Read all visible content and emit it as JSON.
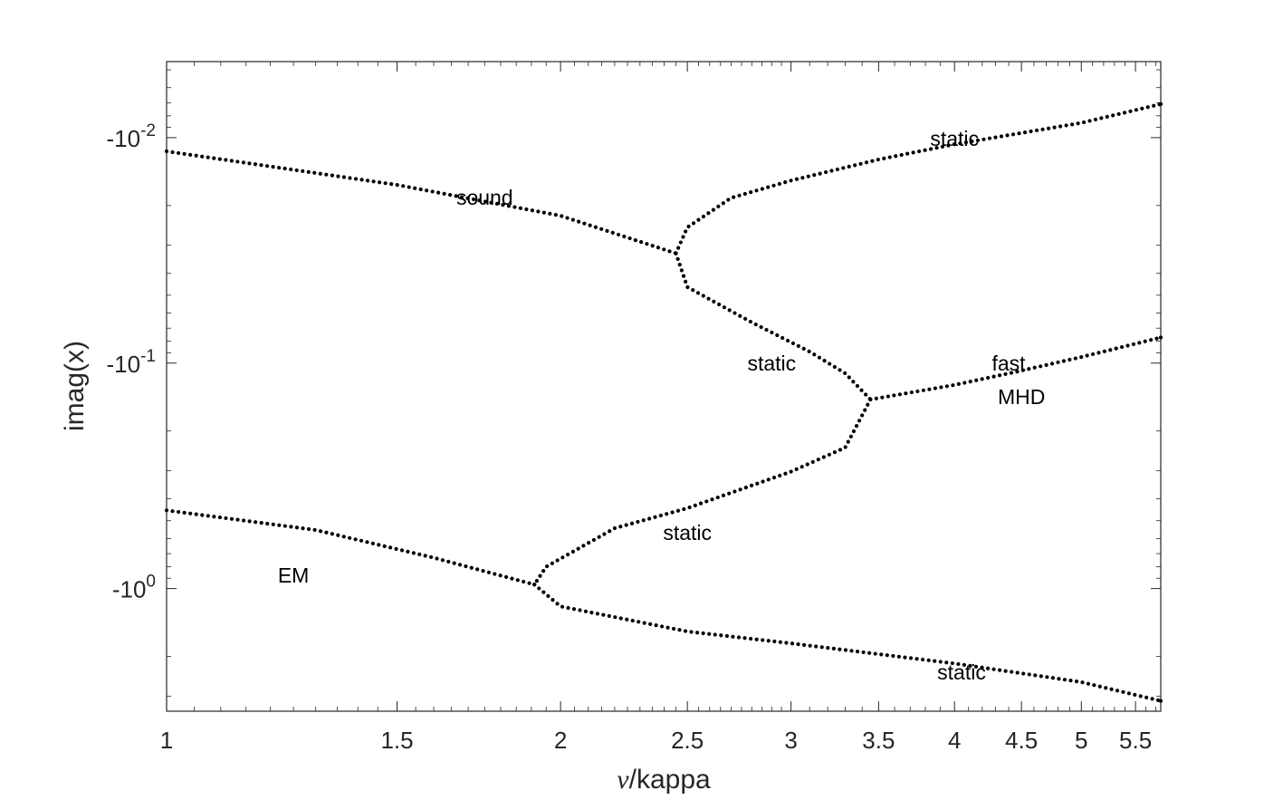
{
  "chart_data": {
    "type": "scatter",
    "title": "",
    "xlabel_symbol": "ν",
    "xlabel_text": "/kappa",
    "ylabel": "imag(x)",
    "x_scale": "log",
    "y_scale": "symlog",
    "xlim": [
      1,
      5.75
    ],
    "ylim": [
      -3.5,
      -0.0046
    ],
    "grid": false,
    "legend": "none",
    "x_ticks": [
      {
        "value": 1,
        "label": "1"
      },
      {
        "value": 1.5,
        "label": "1.5"
      },
      {
        "value": 2,
        "label": "2"
      },
      {
        "value": 2.5,
        "label": "2.5"
      },
      {
        "value": 3,
        "label": "3"
      },
      {
        "value": 3.5,
        "label": "3.5"
      },
      {
        "value": 4,
        "label": "4"
      },
      {
        "value": 4.5,
        "label": "4.5"
      },
      {
        "value": 5,
        "label": "5"
      },
      {
        "value": 5.5,
        "label": "5.5"
      }
    ],
    "y_ticks": [
      {
        "value": -0.01,
        "base": "-10",
        "exp": "-2"
      },
      {
        "value": -0.1,
        "base": "-10",
        "exp": "-1"
      },
      {
        "value": -1,
        "base": "-10",
        "exp": "0"
      }
    ],
    "series": [
      {
        "points": [
          [
            1,
            -0.0115
          ],
          [
            1.5,
            -0.0162
          ],
          [
            2.0,
            -0.0222
          ],
          [
            2.45,
            -0.0326
          ]
        ]
      },
      {
        "points": [
          [
            2.45,
            -0.0326
          ],
          [
            2.5,
            -0.025
          ],
          [
            2.7,
            -0.0185
          ],
          [
            3.0,
            -0.0155
          ],
          [
            3.5,
            -0.0125
          ],
          [
            4.0,
            -0.0107
          ],
          [
            5.0,
            -0.0086
          ],
          [
            5.75,
            -0.0071
          ]
        ]
      },
      {
        "points": [
          [
            2.45,
            -0.0326
          ],
          [
            2.5,
            -0.046
          ],
          [
            2.8,
            -0.066
          ],
          [
            3.1,
            -0.089
          ],
          [
            3.3,
            -0.111
          ],
          [
            3.45,
            -0.145
          ]
        ]
      },
      {
        "points": [
          [
            3.45,
            -0.145
          ],
          [
            4.0,
            -0.125
          ],
          [
            4.5,
            -0.108
          ],
          [
            5.0,
            -0.094
          ],
          [
            5.75,
            -0.077
          ]
        ]
      },
      {
        "points": [
          [
            3.45,
            -0.145
          ],
          [
            3.3,
            -0.237
          ],
          [
            3.0,
            -0.303
          ],
          [
            2.5,
            -0.44
          ],
          [
            2.2,
            -0.54
          ],
          [
            1.95,
            -0.8
          ],
          [
            1.91,
            -0.96
          ]
        ]
      },
      {
        "points": [
          [
            1,
            -0.45
          ],
          [
            1.3,
            -0.55
          ],
          [
            1.6,
            -0.73
          ],
          [
            1.91,
            -0.96
          ]
        ]
      },
      {
        "points": [
          [
            1.91,
            -0.96
          ],
          [
            2.0,
            -1.2
          ],
          [
            2.5,
            -1.55
          ],
          [
            3.0,
            -1.75
          ],
          [
            4.0,
            -2.15
          ],
          [
            5.0,
            -2.6
          ],
          [
            5.75,
            -3.15
          ]
        ]
      }
    ],
    "annotations": [
      {
        "text": "sound",
        "x": 1.75,
        "y": -0.0184
      },
      {
        "text": "static",
        "x": 4.0,
        "y": -0.0101
      },
      {
        "text": "static",
        "x": 2.9,
        "y": -0.1
      },
      {
        "text": "fast",
        "x": 4.4,
        "y": -0.1
      },
      {
        "text": "MHD",
        "x": 4.5,
        "y": -0.141
      },
      {
        "text": "static",
        "x": 2.5,
        "y": -0.565
      },
      {
        "text": "EM",
        "x": 1.25,
        "y": -0.875
      },
      {
        "text": "static",
        "x": 4.05,
        "y": -2.35
      }
    ]
  }
}
